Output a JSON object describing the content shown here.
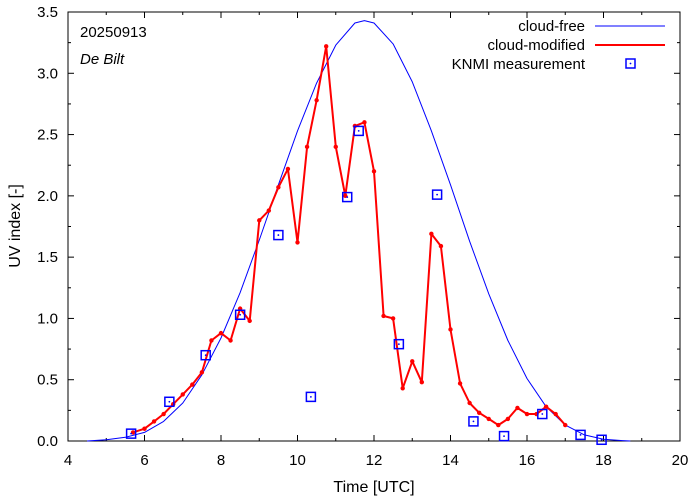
{
  "chart_data": {
    "type": "line",
    "date": "20250913",
    "location": "De Bilt",
    "xlabel": "Time  [UTC]",
    "ylabel": "UV index  [-]",
    "xlim": [
      4,
      20
    ],
    "ylim": [
      0,
      3.5
    ],
    "xticks": [
      "4",
      "6",
      "8",
      "10",
      "12",
      "14",
      "16",
      "18",
      "20"
    ],
    "yticks": [
      "0.0",
      "0.5",
      "1.0",
      "1.5",
      "2.0",
      "2.5",
      "3.0",
      "3.5"
    ],
    "grid": false,
    "legend_position": "top-right",
    "series": [
      {
        "name": "cloud-free",
        "color": "#0000ff",
        "style": "line",
        "x": [
          4.5,
          5.0,
          5.5,
          6.0,
          6.5,
          7.0,
          7.5,
          8.0,
          8.5,
          9.0,
          9.5,
          10.0,
          10.5,
          11.0,
          11.5,
          11.75,
          12.0,
          12.5,
          13.0,
          13.5,
          14.0,
          14.5,
          15.0,
          15.5,
          16.0,
          16.5,
          17.0,
          17.5,
          18.0,
          18.5,
          18.7
        ],
        "y": [
          0.0,
          0.01,
          0.03,
          0.07,
          0.16,
          0.31,
          0.54,
          0.84,
          1.21,
          1.64,
          2.09,
          2.53,
          2.92,
          3.23,
          3.41,
          3.43,
          3.41,
          3.24,
          2.93,
          2.53,
          2.09,
          1.63,
          1.2,
          0.82,
          0.51,
          0.28,
          0.13,
          0.05,
          0.015,
          0.003,
          0.0
        ]
      },
      {
        "name": "cloud-modified",
        "color": "#ff0000",
        "style": "line-points",
        "x": [
          5.7,
          6.0,
          6.25,
          6.5,
          6.75,
          7.0,
          7.25,
          7.5,
          7.75,
          8.0,
          8.25,
          8.5,
          8.75,
          9.0,
          9.25,
          9.5,
          9.75,
          10.0,
          10.25,
          10.5,
          10.75,
          11.0,
          11.25,
          11.5,
          11.75,
          12.0,
          12.25,
          12.5,
          12.75,
          13.0,
          13.25,
          13.5,
          13.75,
          14.0,
          14.25,
          14.5,
          14.75,
          15.0,
          15.25,
          15.5,
          15.75,
          16.0,
          16.25,
          16.5,
          16.75,
          17.0
        ],
        "y": [
          0.07,
          0.1,
          0.16,
          0.22,
          0.3,
          0.38,
          0.46,
          0.56,
          0.82,
          0.88,
          0.82,
          1.08,
          0.98,
          1.8,
          1.88,
          2.07,
          2.22,
          1.62,
          2.4,
          2.78,
          3.22,
          2.4,
          2.0,
          2.57,
          2.6,
          2.2,
          1.02,
          1.0,
          0.43,
          0.65,
          0.48,
          1.69,
          1.59,
          0.91,
          0.47,
          0.31,
          0.23,
          0.18,
          0.13,
          0.18,
          0.27,
          0.22,
          0.22,
          0.28,
          0.22,
          0.13
        ]
      },
      {
        "name": "KNMI measurement",
        "color": "#0000ff",
        "style": "markers",
        "x": [
          5.65,
          6.65,
          7.6,
          8.5,
          9.5,
          10.35,
          11.3,
          11.6,
          12.65,
          13.65,
          14.6,
          15.4,
          16.4,
          17.4,
          17.95
        ],
        "y": [
          0.06,
          0.32,
          0.7,
          1.03,
          1.68,
          0.36,
          1.99,
          2.53,
          0.79,
          2.01,
          0.16,
          0.04,
          0.22,
          0.05,
          0.01
        ]
      }
    ]
  }
}
